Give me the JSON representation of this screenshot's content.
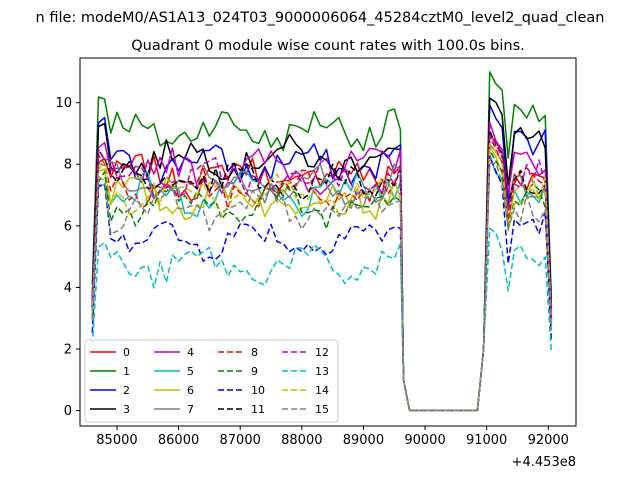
{
  "figure": {
    "suptitle": "n file: modeM0/AS1A13_024T03_9000006064_45284cztM0_level2_quad_clean",
    "offset_label": "+4.453e8"
  },
  "chart_data": {
    "type": "line",
    "title": "Quadrant 0 module wise count rates with 100.0s bins.",
    "xlabel": "",
    "ylabel": "",
    "x_offset": 445300000,
    "xlim": [
      84400,
      92450
    ],
    "ylim": [
      -0.5,
      11.45
    ],
    "x_ticks": [
      85000,
      86000,
      87000,
      88000,
      89000,
      90000,
      91000,
      92000
    ],
    "y_ticks": [
      0,
      2,
      4,
      6,
      8,
      10
    ],
    "grid": false,
    "legend_position": "lower-left",
    "segments": [
      {
        "x_start": 84600,
        "x_end": 89600,
        "step": 100
      },
      {
        "x_start": 89650,
        "x_end": 90850,
        "step": 100
      },
      {
        "x_start": 90950,
        "x_end": 92050,
        "step": 100
      }
    ],
    "series": [
      {
        "name": "0",
        "color": "#ff0000",
        "dash": "solid",
        "level": 7.6,
        "peak": 8.3,
        "peak2": 9.0,
        "end": 7.6
      },
      {
        "name": "1",
        "color": "#008000",
        "dash": "solid",
        "level": 9.1,
        "peak": 10.3,
        "peak2": 11.0,
        "end": 9.5
      },
      {
        "name": "2",
        "color": "#0000ff",
        "dash": "solid",
        "level": 8.0,
        "peak": 9.7,
        "peak2": 10.0,
        "end": 8.8
      },
      {
        "name": "3",
        "color": "#000000",
        "dash": "solid",
        "level": 8.2,
        "peak": 9.4,
        "peak2": 10.3,
        "end": 8.7
      },
      {
        "name": "4",
        "color": "#bf00bf",
        "dash": "solid",
        "level": 7.8,
        "peak": 8.9,
        "peak2": 9.3,
        "end": 8.1
      },
      {
        "name": "5",
        "color": "#00bfbf",
        "dash": "solid",
        "level": 7.0,
        "peak": 7.6,
        "peak2": 8.2,
        "end": 7.1
      },
      {
        "name": "6",
        "color": "#bfbf00",
        "dash": "solid",
        "level": 6.9,
        "peak": 7.9,
        "peak2": 8.4,
        "end": 7.0
      },
      {
        "name": "7",
        "color": "#808080",
        "dash": "solid",
        "level": 7.3,
        "peak": 8.1,
        "peak2": 8.7,
        "end": 7.4
      },
      {
        "name": "8",
        "color": "#ff0000",
        "dash": "dashed",
        "level": 7.2,
        "peak": 8.4,
        "peak2": 8.9,
        "end": 7.5
      },
      {
        "name": "9",
        "color": "#008000",
        "dash": "dashed",
        "level": 6.7,
        "peak": 7.8,
        "peak2": 8.5,
        "end": 6.9
      },
      {
        "name": "10",
        "color": "#0000ff",
        "dash": "dashed",
        "level": 5.6,
        "peak": 7.5,
        "peak2": 8.1,
        "end": 6.1
      },
      {
        "name": "11",
        "color": "#000000",
        "dash": "dashed",
        "level": 7.4,
        "peak": 8.5,
        "peak2": 9.0,
        "end": 7.5
      },
      {
        "name": "12",
        "color": "#bf00bf",
        "dash": "dashed",
        "level": 7.5,
        "peak": 8.5,
        "peak2": 9.1,
        "end": 7.7
      },
      {
        "name": "13",
        "color": "#00bfbf",
        "dash": "dashed",
        "level": 4.7,
        "peak": 5.6,
        "peak2": 6.0,
        "end": 5.0
      },
      {
        "name": "14",
        "color": "#bfbf00",
        "dash": "dashed",
        "level": 7.0,
        "peak": 8.2,
        "peak2": 8.8,
        "end": 7.2
      },
      {
        "name": "15",
        "color": "#808080",
        "dash": "dashed",
        "level": 6.5,
        "peak": 7.6,
        "peak2": 8.2,
        "end": 6.6
      }
    ]
  }
}
